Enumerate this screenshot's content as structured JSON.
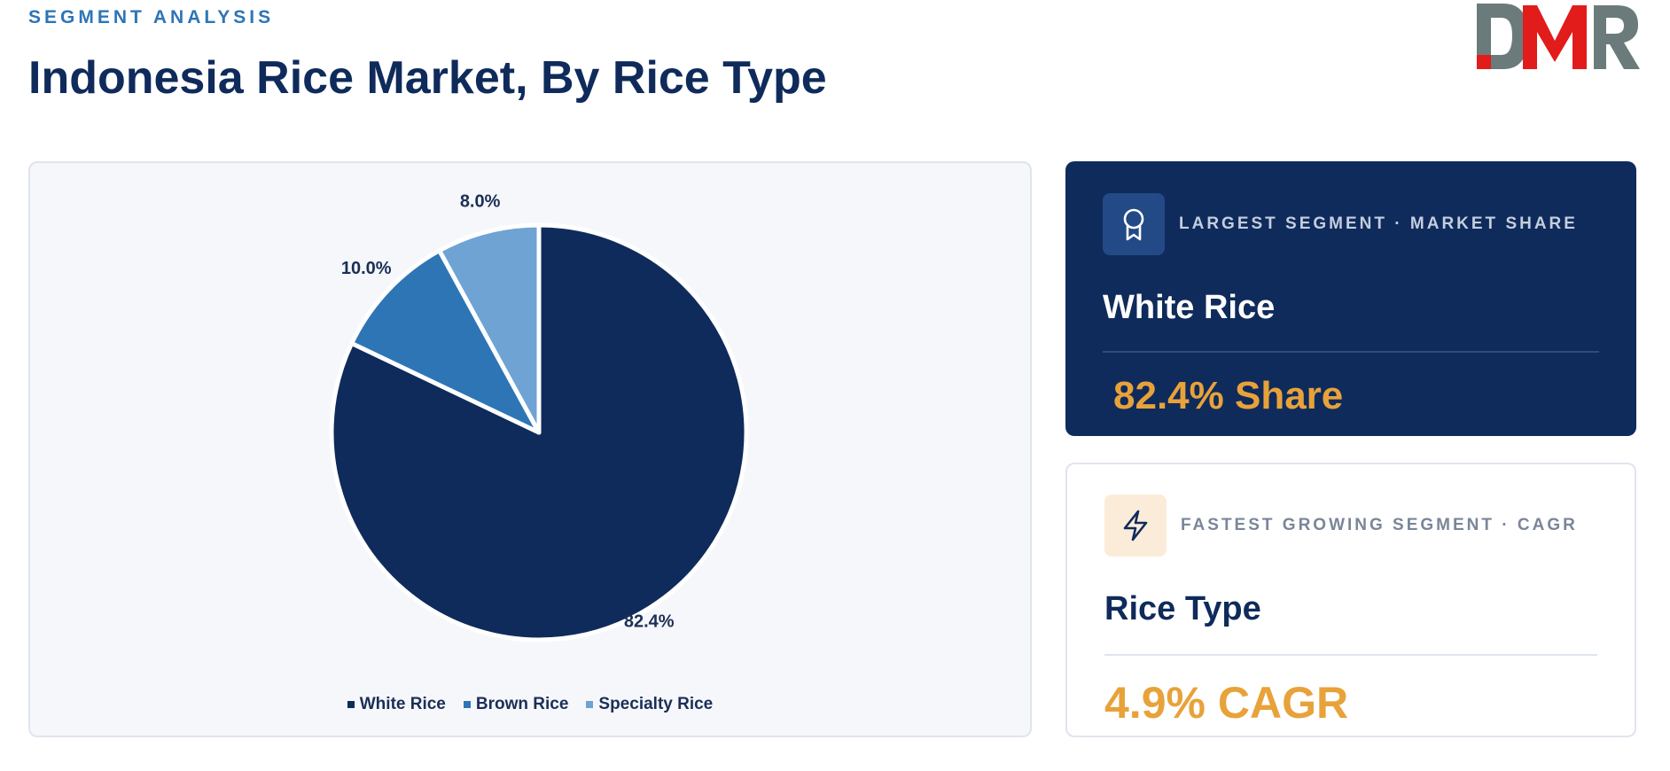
{
  "header": {
    "eyebrow": "SEGMENT ANALYSIS",
    "title": "Indonesia Rice Market, By Rice Type",
    "logo_text": "DMR"
  },
  "colors": {
    "navy": "#0f2b5b",
    "accent_blue": "#2e75b6",
    "orange": "#e8a23a",
    "logo_gray": "#6b7b7b",
    "logo_red": "#e21b1b"
  },
  "chart_data": {
    "type": "pie",
    "title": "",
    "categories": [
      "White Rice",
      "Brown Rice",
      "Specialty Rice"
    ],
    "values": [
      82.4,
      10.0,
      8.0
    ],
    "labels": [
      "82.4%",
      "10.0%",
      "8.0%"
    ],
    "colors": [
      "#0f2b5b",
      "#2e75b6",
      "#6fa3d4"
    ],
    "legend_position": "bottom"
  },
  "largest_segment": {
    "icon": "award-icon",
    "label": "LARGEST SEGMENT  ·  MARKET SHARE",
    "name": "White Rice",
    "metric": "82.4% Share"
  },
  "fastest_segment": {
    "icon": "lightning-icon",
    "label": "FASTEST GROWING SEGMENT  ·  CAGR",
    "name": "Rice Type",
    "metric": "4.9% CAGR"
  }
}
